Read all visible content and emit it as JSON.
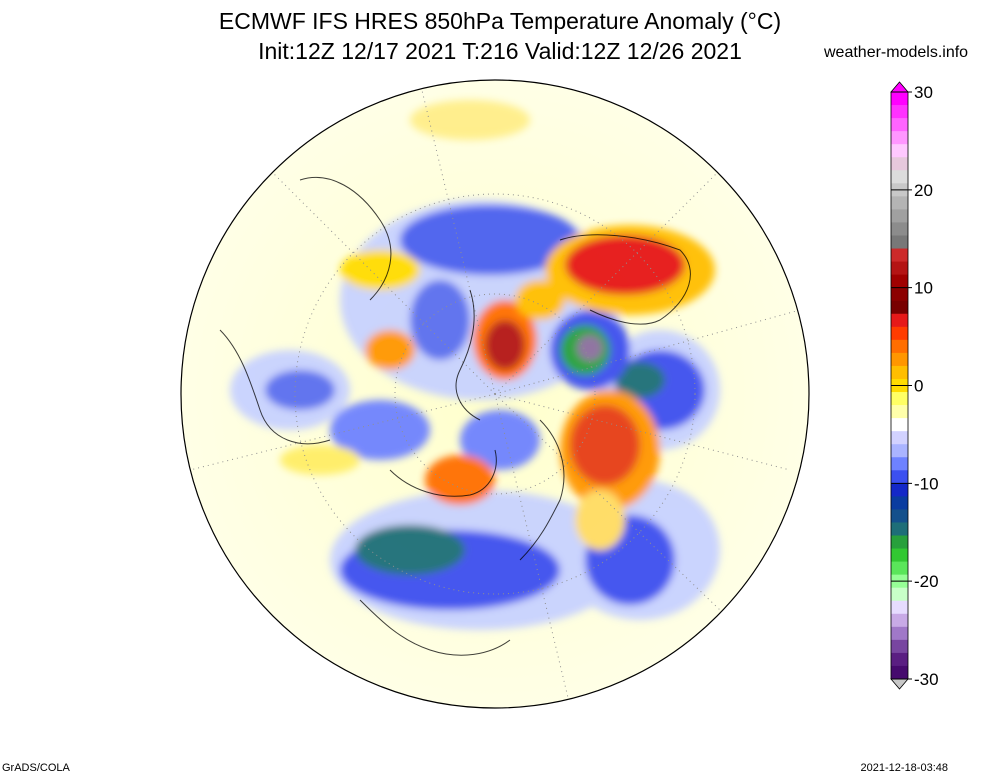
{
  "title": "ECMWF IFS HRES 850hPa Temperature Anomaly (°C)",
  "subtitle": "Init:12Z 12/17 2021 T:216 Valid:12Z 12/26 2021",
  "site": "weather-models.info",
  "footer_left": "GrADS/COLA",
  "footer_right": "2021-12-18-03:48",
  "colorbar": {
    "min": -30,
    "max": 30,
    "ticks": [
      {
        "label": "30",
        "value": 30
      },
      {
        "label": "20",
        "value": 20
      },
      {
        "label": "10",
        "value": 10
      },
      {
        "label": "0",
        "value": 0
      },
      {
        "label": "-10",
        "value": -10
      },
      {
        "label": "-20",
        "value": -20
      },
      {
        "label": "-30",
        "value": -30
      }
    ],
    "colors": [
      "#c8c8c8",
      "#b4b4b4",
      "#a0a0a0",
      "#8c8c8c",
      "#787878",
      "#cc2a2a",
      "#b41414",
      "#a00000",
      "#8c0000",
      "#780000",
      "#e61919",
      "#ff3c00",
      "#ff6e00",
      "#ff9600",
      "#ffbe00",
      "#ffdc00",
      "#ffff64",
      "#ffffaa",
      "#ffffff",
      "#d2d2ff",
      "#aab4ff",
      "#6e82ff",
      "#3c50f0",
      "#1428c8",
      "#0a3ca0",
      "#14508c",
      "#1e6e78",
      "#28a03c",
      "#32c832",
      "#5ae65a",
      "#96ff96",
      "#c8ffc8",
      "#e6dcff",
      "#c8aae6",
      "#a078c8",
      "#7846a0",
      "#5a1e82",
      "#460a6e"
    ]
  },
  "map_regions": [
    {
      "name": "warm-anomaly-north-pacific",
      "color": "#e8401a"
    },
    {
      "name": "cold-anomaly-north-america",
      "color": "#2a3cd6"
    },
    {
      "name": "cold-anomaly-siberia",
      "color": "#1e6e78"
    },
    {
      "name": "warm-anomaly-europe",
      "color": "#d62a14"
    }
  ]
}
